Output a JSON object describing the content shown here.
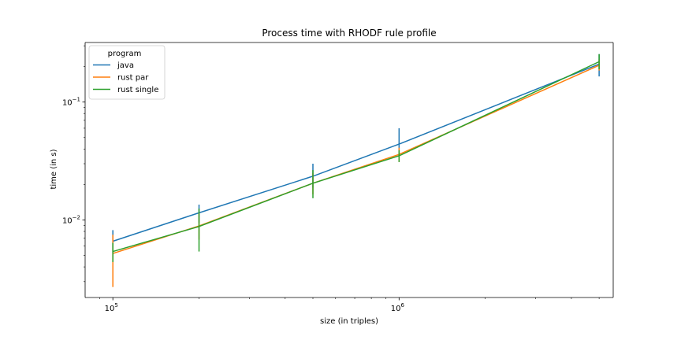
{
  "chart_data": {
    "type": "line",
    "title": "Process time with RHODF rule profile",
    "xlabel": "size (in triples)",
    "ylabel": "time (in s)",
    "xscale": "log",
    "yscale": "log",
    "xlim": [
      80000,
      5600000
    ],
    "ylim": [
      0.0022,
      0.32
    ],
    "x": [
      100000,
      200000,
      500000,
      1000000,
      5000000
    ],
    "x_ticks": [
      {
        "value": 100000,
        "base": "10",
        "exp": "5"
      },
      {
        "value": 1000000,
        "base": "10",
        "exp": "6"
      }
    ],
    "y_ticks": [
      {
        "value": 0.01,
        "base": "10",
        "exp": "−2"
      },
      {
        "value": 0.1,
        "base": "10",
        "exp": "−1"
      }
    ],
    "legend": {
      "title": "program",
      "placement": "top-left"
    },
    "grid": false,
    "series": [
      {
        "name": "java",
        "color": "#1f77b4",
        "values": [
          0.0066,
          0.0115,
          0.0235,
          0.044,
          0.21
        ],
        "err_low": [
          0.0053,
          0.0095,
          0.0188,
          0.034,
          0.165
        ],
        "err_high": [
          0.0082,
          0.0135,
          0.03,
          0.06,
          0.255
        ]
      },
      {
        "name": "rust par",
        "color": "#ff7f0e",
        "values": [
          0.0052,
          0.0089,
          0.0205,
          0.036,
          0.205
        ],
        "err_low": [
          0.0027,
          0.0068,
          0.0165,
          0.031,
          0.185
        ],
        "err_high": [
          0.0075,
          0.0115,
          0.025,
          0.041,
          0.23
        ]
      },
      {
        "name": "rust single",
        "color": "#2ca02c",
        "values": [
          0.0054,
          0.0088,
          0.0205,
          0.035,
          0.22
        ],
        "err_low": [
          0.0044,
          0.0054,
          0.0153,
          0.031,
          0.19
        ],
        "err_high": [
          0.0064,
          0.0125,
          0.0265,
          0.039,
          0.255
        ]
      }
    ]
  }
}
